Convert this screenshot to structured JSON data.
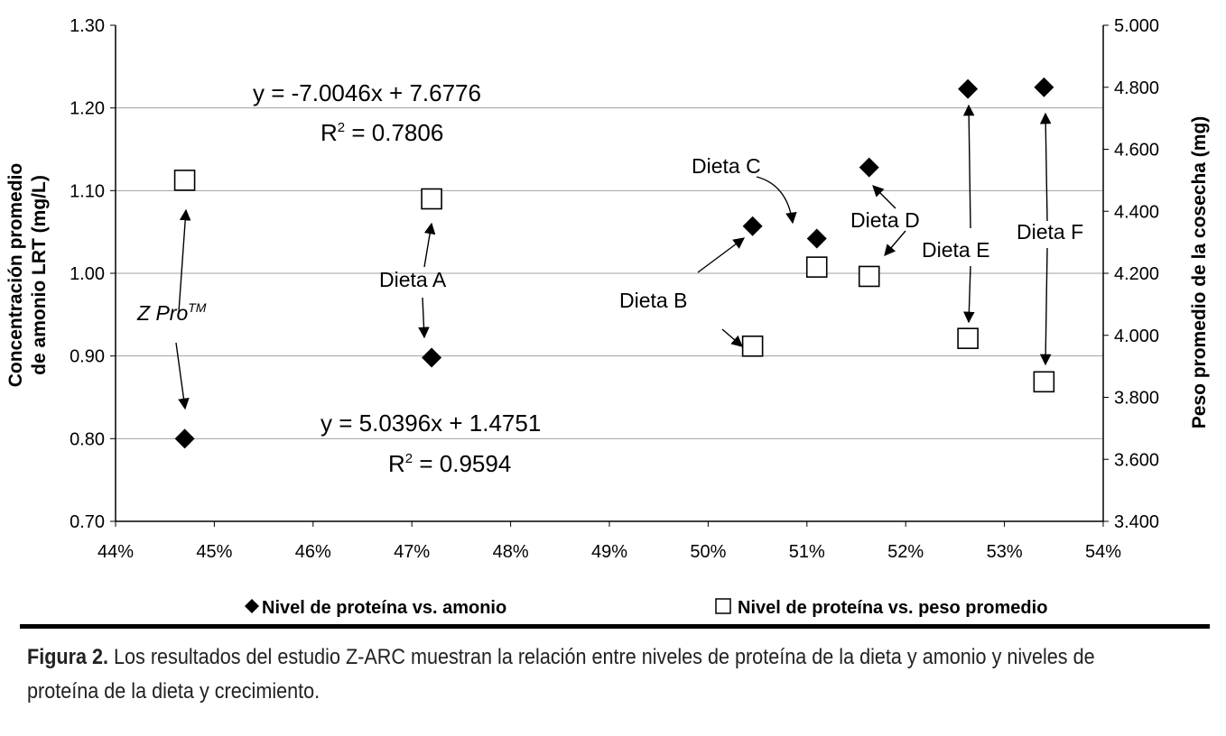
{
  "chart_data": {
    "type": "scatter",
    "x": {
      "min": 0.44,
      "max": 0.54,
      "step": 0.01,
      "tick_labels": [
        "44%",
        "45%",
        "46%",
        "47%",
        "48%",
        "49%",
        "50%",
        "51%",
        "52%",
        "53%",
        "54%"
      ]
    },
    "y_left": {
      "label_line1": "Concentración promedio",
      "label_line2": "de amonio LRT (mg/L)",
      "min": 0.7,
      "max": 1.3,
      "step": 0.1,
      "tick_labels": [
        "0.70",
        "0.80",
        "0.90",
        "1.00",
        "1.10",
        "1.20",
        "1.30"
      ]
    },
    "y_right": {
      "label": "Peso promedio de la cosecha (mg)",
      "min": 3400,
      "max": 5000,
      "step": 200,
      "tick_labels": [
        "3.400",
        "3.600",
        "3.800",
        "4.000",
        "4.200",
        "4.400",
        "4.600",
        "4.800",
        "5.000"
      ]
    },
    "grid": "horizontal",
    "legend_position": "bottom",
    "series": [
      {
        "name": "Nivel de proteína vs. amonio",
        "marker": "diamond",
        "axis": "left",
        "x": [
          0.447,
          0.472,
          0.5045,
          0.511,
          0.5163,
          0.5263,
          0.534
        ],
        "y": [
          0.8,
          0.898,
          1.057,
          1.042,
          1.128,
          1.223,
          1.225
        ],
        "trendline": {
          "style": "solid",
          "slope": 5.0396,
          "intercept": 1.4751,
          "x_from": 0.447,
          "x_to": 0.534,
          "equation": "y = 5.0396x + 1.4751",
          "r2_prefix": "R",
          "r2_value": " = 0.9594"
        }
      },
      {
        "name": "Nivel de proteína vs. peso promedio",
        "marker": "square-open",
        "axis": "right",
        "x": [
          0.447,
          0.472,
          0.5045,
          0.511,
          0.5163,
          0.5263,
          0.534
        ],
        "y": [
          4500,
          4440,
          3965,
          4220,
          4190,
          3990,
          3850
        ],
        "trendline": {
          "style": "dashed",
          "slope": -7.0046,
          "intercept": 7.6776,
          "axis": "left",
          "x_from": 0.447,
          "x_to": 0.534,
          "equation": "y = -7.0046x + 7.6776",
          "r2_prefix": "R",
          "r2_value": " = 0.7806"
        }
      }
    ],
    "annotations": {
      "zpro_main": "Z Pro",
      "zpro_tm": "TM",
      "dieta_a": "Dieta A",
      "dieta_b": "Dieta B",
      "dieta_c": "Dieta C",
      "dieta_d": "Dieta D",
      "dieta_e": "Dieta E",
      "dieta_f": "Dieta F"
    }
  },
  "caption": {
    "lead": "Figura 2.",
    "text": " Los resultados del estudio Z-ARC muestran la relación entre niveles de proteína de la dieta y amonio y niveles de proteína de la dieta y crecimiento."
  }
}
